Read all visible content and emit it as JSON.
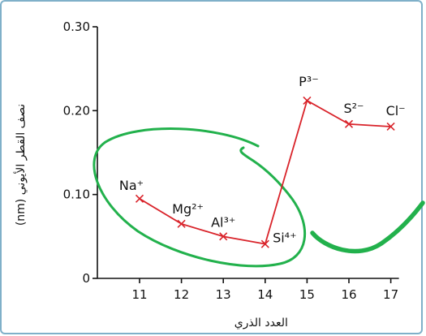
{
  "chart_data": {
    "type": "line",
    "title": "",
    "xlabel": "العدد الذري",
    "ylabel": "نصف القطر الأيوني (nm)",
    "x": [
      11,
      12,
      13,
      14,
      15,
      16,
      17
    ],
    "y": [
      0.095,
      0.065,
      0.05,
      0.041,
      0.212,
      0.184,
      0.181
    ],
    "point_labels": [
      "Na⁺",
      "Mg²⁺",
      "Al³⁺",
      "Si⁴⁺",
      "P³⁻",
      "S²⁻",
      "Cl⁻"
    ],
    "xlim": [
      10,
      17
    ],
    "ylim": [
      0,
      0.3
    ],
    "xticks": [
      11,
      12,
      13,
      14,
      15,
      16,
      17
    ],
    "yticks": [
      {
        "value": 0,
        "label": "0"
      },
      {
        "value": 0.1,
        "label": "0.10"
      },
      {
        "value": 0.2,
        "label": "0.20"
      },
      {
        "value": 0.3,
        "label": "0.30"
      }
    ],
    "grid": false,
    "colors": {
      "series": "#d9232a",
      "axis": "#111111",
      "annotation": "#22b14c"
    }
  }
}
